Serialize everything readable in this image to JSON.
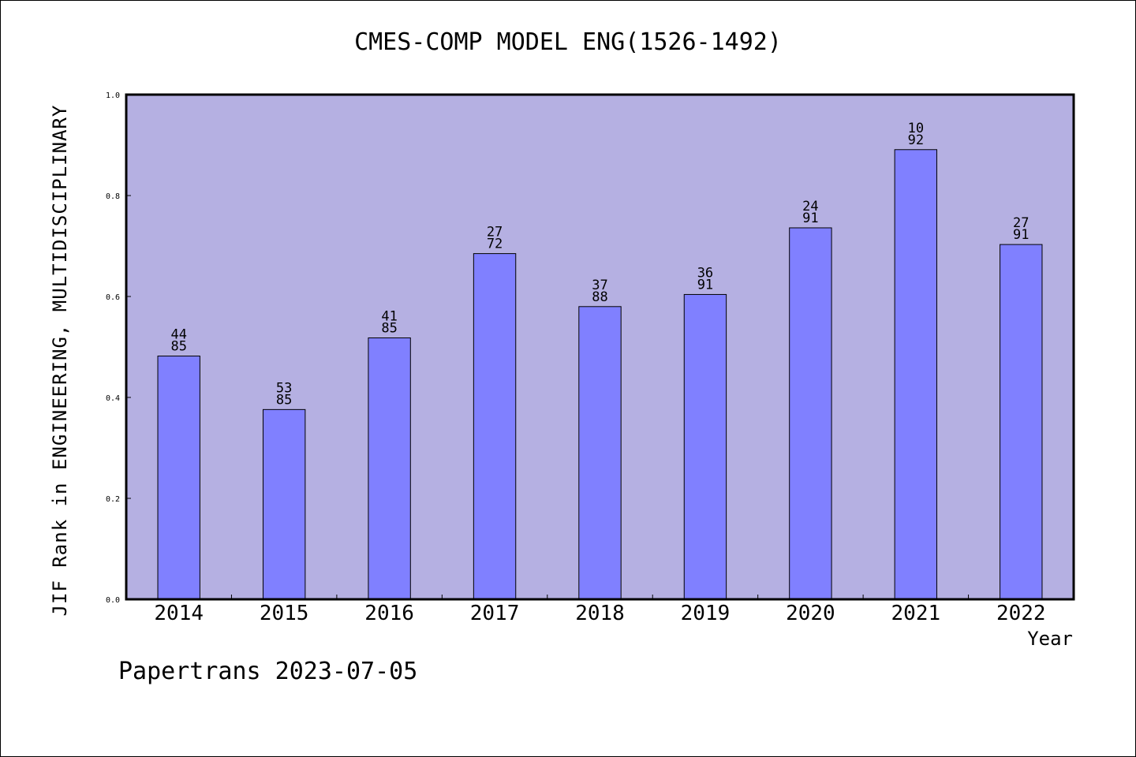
{
  "chart_data": {
    "type": "bar",
    "title": "CMES-COMP MODEL ENG(1526-1492)",
    "xlabel": "Year",
    "ylabel": "JIF Rank in ENGINEERING, MULTIDISCIPLINARY",
    "ylim": [
      0,
      1.0
    ],
    "yticks": [
      "0.0",
      "0.2",
      "0.4",
      "0.6",
      "0.8",
      "1.0"
    ],
    "categories": [
      "2014",
      "2015",
      "2016",
      "2017",
      "2018",
      "2019",
      "2020",
      "2021",
      "2022"
    ],
    "values": [
      0.482,
      0.376,
      0.518,
      0.685,
      0.58,
      0.604,
      0.736,
      0.891,
      0.703
    ],
    "bar_labels": [
      [
        "44",
        "85"
      ],
      [
        "53",
        "85"
      ],
      [
        "41",
        "85"
      ],
      [
        "27",
        "72"
      ],
      [
        "37",
        "88"
      ],
      [
        "36",
        "91"
      ],
      [
        "24",
        "91"
      ],
      [
        "10",
        "92"
      ],
      [
        "27",
        "91"
      ]
    ],
    "grid": false,
    "colors": {
      "bar": "#8080ff",
      "plot_bg": "#b5b0e2"
    }
  },
  "footer": "Papertrans 2023-07-05"
}
